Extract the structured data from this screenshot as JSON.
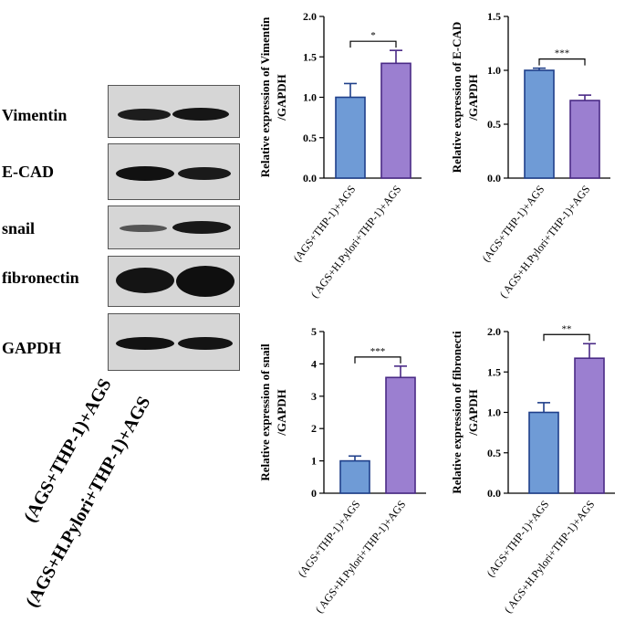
{
  "blot": {
    "rows": [
      {
        "label": "Vimentin"
      },
      {
        "label": "E-CAD"
      },
      {
        "label": "snail"
      },
      {
        "label": "fibronectin"
      },
      {
        "label": "GAPDH"
      }
    ],
    "lanes": [
      "(AGS+THP-1)+AGS",
      "(AGS+H.Pylori+THP-1)+AGS"
    ]
  },
  "colors": {
    "group1": "#6f9bd6",
    "group2": "#9b7fd0",
    "edge1": "#1f3f8a",
    "edge2": "#4a2a86"
  },
  "chart_data": [
    {
      "type": "bar",
      "categories": [
        "(AGS+THP-1)+AGS",
        "( AGS+H.Pylori+THP-1)+AGS"
      ],
      "values": [
        1.0,
        1.42
      ],
      "errors": [
        0.17,
        0.16
      ],
      "ylabel": "Relative expression of Vimentin\n/GAPDH",
      "ylim": [
        0,
        2.0
      ],
      "yticks": [
        "0.0",
        "0.5",
        "1.0",
        "1.5",
        "2.0"
      ],
      "significance": "*"
    },
    {
      "type": "bar",
      "categories": [
        "(AGS+THP-1)+AGS",
        "( AGS+H.Pylori+THP-1)+AGS"
      ],
      "values": [
        1.0,
        0.72
      ],
      "errors": [
        0.02,
        0.05
      ],
      "ylabel": "Relative expression of E-CAD\n/GAPDH",
      "ylim": [
        0,
        1.5
      ],
      "yticks": [
        "0.0",
        "0.5",
        "1.0",
        "1.5"
      ],
      "significance": "***"
    },
    {
      "type": "bar",
      "categories": [
        "(AGS+THP-1)+AGS",
        "( AGS+H.Pylori+THP-1)+AGS"
      ],
      "values": [
        1.0,
        3.58
      ],
      "errors": [
        0.15,
        0.35
      ],
      "ylabel": "Relative expression of snail\n/GAPDH",
      "ylim": [
        0,
        5
      ],
      "yticks": [
        "0",
        "1",
        "2",
        "3",
        "4",
        "5"
      ],
      "significance": "***"
    },
    {
      "type": "bar",
      "categories": [
        "(AGS+THP-1)+AGS",
        "( AGS+H.Pylori+THP-1)+AGS"
      ],
      "values": [
        1.0,
        1.67
      ],
      "errors": [
        0.12,
        0.18
      ],
      "ylabel": "Relative expression of fibronecti\n/GAPDH",
      "ylim": [
        0,
        2.0
      ],
      "yticks": [
        "0.0",
        "0.5",
        "1.0",
        "1.5",
        "2.0"
      ],
      "significance": "**"
    }
  ]
}
